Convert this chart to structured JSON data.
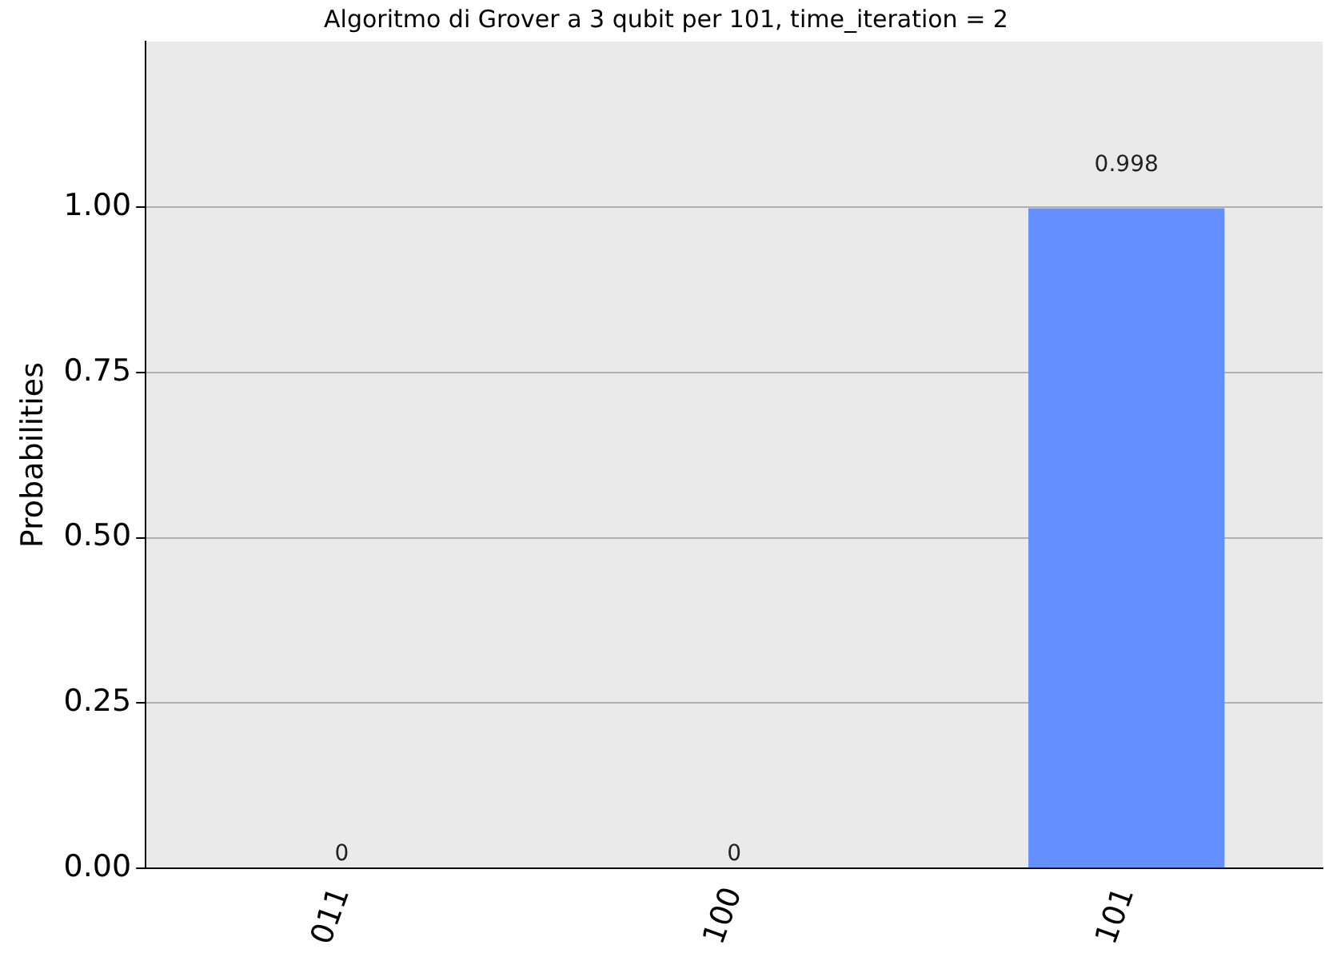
{
  "chart_data": {
    "type": "bar",
    "title": "Algoritmo di Grover a 3 qubit per 101, time_iteration = 2",
    "ylabel": "Probabilities",
    "categories": [
      "011",
      "100",
      "101"
    ],
    "values": [
      0,
      0,
      0.998
    ],
    "color": "#648fff",
    "data_labels": true,
    "ylim": [
      0,
      1.25
    ],
    "yticks": [
      {
        "value": 0,
        "label": "0.00"
      },
      {
        "value": 0.25,
        "label": "0.25"
      },
      {
        "value": 0.5,
        "label": "0.50"
      },
      {
        "value": 0.75,
        "label": "0.75"
      },
      {
        "value": 1,
        "label": "1.00"
      }
    ],
    "grid": "y",
    "legend": false
  }
}
